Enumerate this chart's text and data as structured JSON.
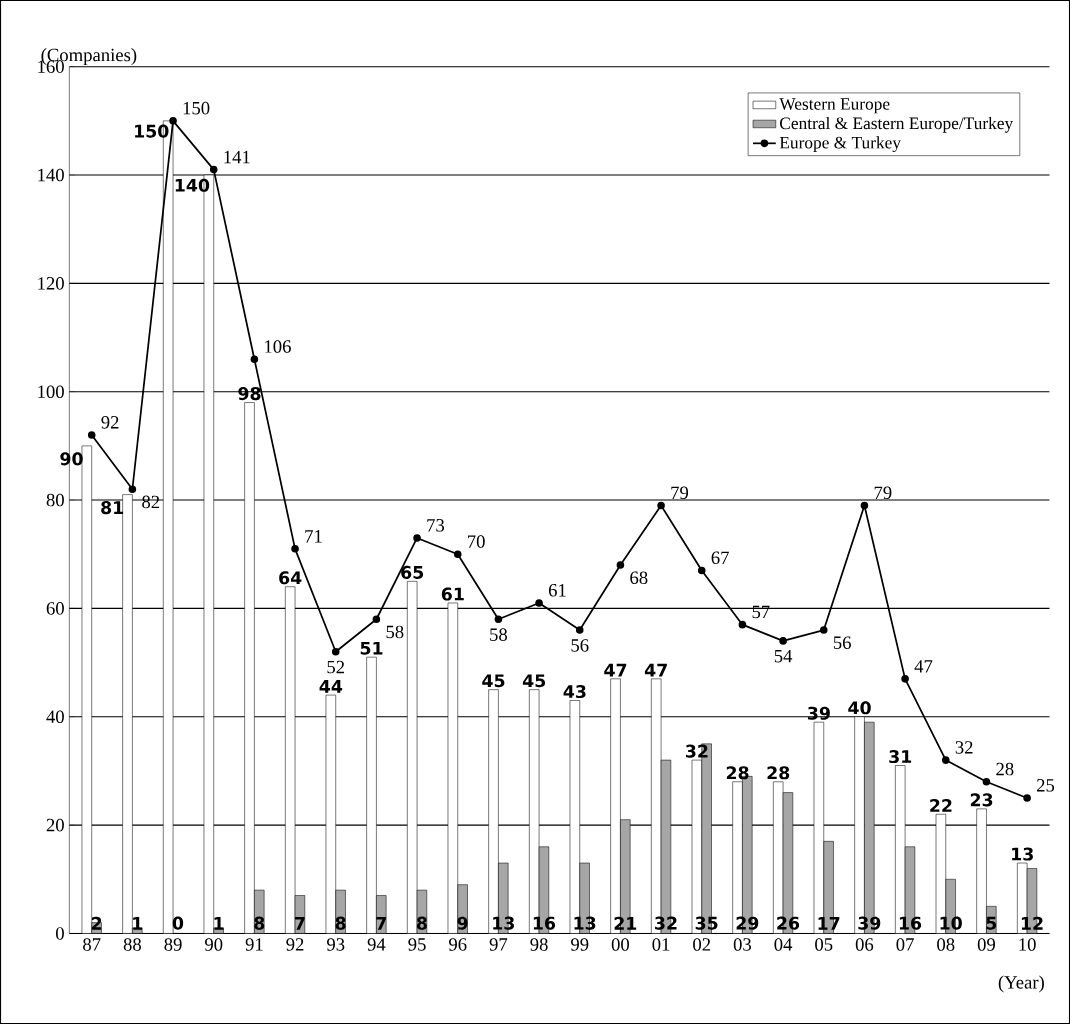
{
  "chart_data": {
    "type": "bar",
    "xlabel": "(Year)",
    "ylabel": "(Companies)",
    "categories": [
      "87",
      "88",
      "89",
      "90",
      "91",
      "92",
      "93",
      "94",
      "95",
      "96",
      "97",
      "98",
      "99",
      "00",
      "01",
      "02",
      "03",
      "04",
      "05",
      "06",
      "07",
      "08",
      "09",
      "10"
    ],
    "series": [
      {
        "name": "Western Europe",
        "color": "#ffffff",
        "values": [
          90,
          81,
          150,
          140,
          98,
          64,
          44,
          51,
          65,
          61,
          45,
          45,
          43,
          47,
          47,
          32,
          28,
          28,
          39,
          40,
          31,
          22,
          23,
          13
        ]
      },
      {
        "name": "Central & Eastern Europe/Turkey",
        "color": "#a6a6a6",
        "values": [
          2,
          1,
          0,
          1,
          8,
          7,
          8,
          7,
          8,
          9,
          13,
          16,
          13,
          21,
          32,
          35,
          29,
          26,
          17,
          39,
          16,
          10,
          5,
          12
        ]
      },
      {
        "name": "Europe & Turkey",
        "type": "line",
        "color": "#000000",
        "marker": "circle",
        "values": [
          92,
          82,
          150,
          141,
          106,
          71,
          52,
          58,
          73,
          70,
          58,
          61,
          56,
          68,
          79,
          67,
          57,
          54,
          56,
          79,
          47,
          32,
          28,
          25
        ]
      }
    ],
    "ylim": [
      0,
      160
    ],
    "yticks": [
      0,
      20,
      40,
      60,
      80,
      100,
      120,
      140,
      160
    ],
    "grid": "y",
    "legend": "top right",
    "data_labels": true
  }
}
